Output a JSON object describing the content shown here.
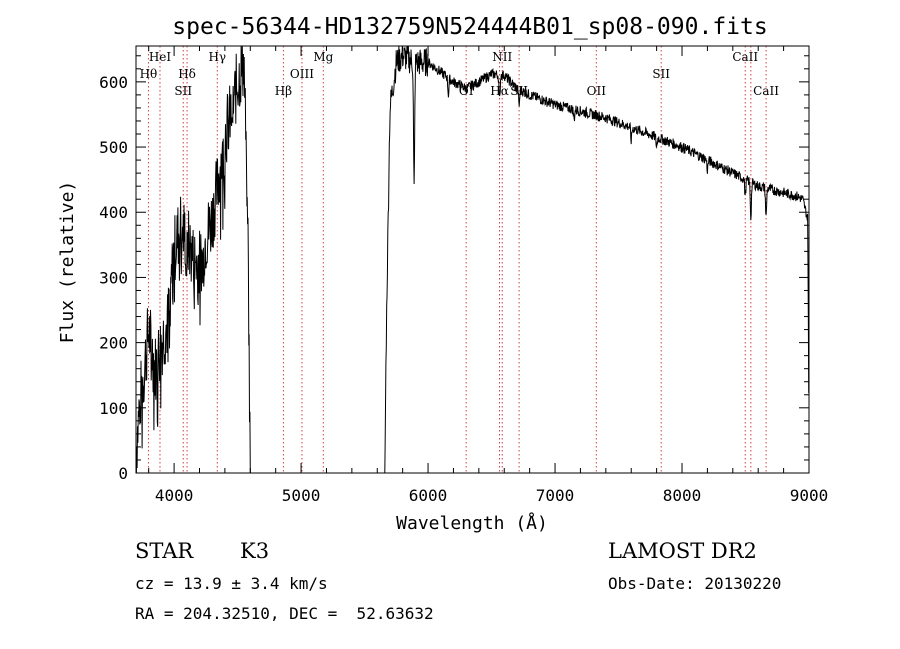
{
  "chart_data": {
    "type": "line",
    "title": "spec-56344-HD132759N524444B01_sp08-090.fits",
    "xlabel": "Wavelength (Å)",
    "ylabel": "Flux (relative)",
    "xlim": [
      3700,
      9000
    ],
    "ylim": [
      0,
      655
    ],
    "x_ticks": [
      4000,
      5000,
      6000,
      7000,
      8000,
      9000
    ],
    "y_ticks": [
      0,
      100,
      200,
      300,
      400,
      500,
      600
    ],
    "grid": false,
    "line_color": "#000000",
    "marker_color": "#d04040",
    "spectrum_anchors": [
      [
        3700,
        30
      ],
      [
        3730,
        110
      ],
      [
        3760,
        150
      ],
      [
        3800,
        220
      ],
      [
        3850,
        160
      ],
      [
        3900,
        200
      ],
      [
        3950,
        230
      ],
      [
        3980,
        300
      ],
      [
        4000,
        340
      ],
      [
        4050,
        380
      ],
      [
        4100,
        360
      ],
      [
        4150,
        330
      ],
      [
        4200,
        320
      ],
      [
        4250,
        360
      ],
      [
        4300,
        390
      ],
      [
        4350,
        450
      ],
      [
        4400,
        520
      ],
      [
        4450,
        550
      ],
      [
        4500,
        600
      ],
      [
        4550,
        630
      ],
      [
        4580,
        400
      ],
      [
        4600,
        0
      ],
      [
        5660,
        0
      ],
      [
        5670,
        200
      ],
      [
        5700,
        560
      ],
      [
        5750,
        630
      ],
      [
        5800,
        640
      ],
      [
        5900,
        630
      ],
      [
        6000,
        630
      ],
      [
        6100,
        615
      ],
      [
        6200,
        600
      ],
      [
        6300,
        590
      ],
      [
        6400,
        600
      ],
      [
        6500,
        612
      ],
      [
        6600,
        610
      ],
      [
        6700,
        590
      ],
      [
        6800,
        580
      ],
      [
        7000,
        565
      ],
      [
        7200,
        555
      ],
      [
        7400,
        545
      ],
      [
        7600,
        530
      ],
      [
        7800,
        515
      ],
      [
        8000,
        500
      ],
      [
        8200,
        480
      ],
      [
        8400,
        460
      ],
      [
        8500,
        450
      ],
      [
        8600,
        440
      ],
      [
        8700,
        435
      ],
      [
        8800,
        430
      ],
      [
        8900,
        425
      ],
      [
        8950,
        420
      ],
      [
        8990,
        390
      ],
      [
        9000,
        50
      ]
    ],
    "absorption_dips": [
      [
        3970,
        45
      ],
      [
        4100,
        40
      ],
      [
        4227,
        30
      ],
      [
        4383,
        25
      ],
      [
        4861,
        20
      ],
      [
        5175,
        30
      ],
      [
        5890,
        200
      ],
      [
        6160,
        25
      ],
      [
        6563,
        40
      ],
      [
        6717,
        25
      ],
      [
        7150,
        15
      ],
      [
        7600,
        20
      ],
      [
        7800,
        15
      ],
      [
        8200,
        15
      ],
      [
        8498,
        25
      ],
      [
        8542,
        55
      ],
      [
        8662,
        45
      ]
    ],
    "line_markers": [
      {
        "label": "HeI",
        "wavelength": 3889,
        "row": 0
      },
      {
        "label": "Hθ",
        "wavelength": 3798,
        "row": 1
      },
      {
        "label": "Hδ",
        "wavelength": 4102,
        "row": 1
      },
      {
        "label": "SII",
        "wavelength": 4072,
        "row": 2
      },
      {
        "label": "Hγ",
        "wavelength": 4340,
        "row": 0
      },
      {
        "label": "Hβ",
        "wavelength": 4861,
        "row": 2
      },
      {
        "label": "OIII",
        "wavelength": 5007,
        "row": 1
      },
      {
        "label": "Mg",
        "wavelength": 5175,
        "row": 0
      },
      {
        "label": "OI",
        "wavelength": 6300,
        "row": 2
      },
      {
        "label": "NII",
        "wavelength": 6584,
        "row": 0
      },
      {
        "label": "Hα",
        "wavelength": 6563,
        "row": 2
      },
      {
        "label": "SII",
        "wavelength": 6717,
        "row": 2
      },
      {
        "label": "OII",
        "wavelength": 7325,
        "row": 2
      },
      {
        "label": "SII",
        "wavelength": 7836,
        "row": 1
      },
      {
        "label": "CaII",
        "wavelength": 8498,
        "row": 0
      },
      {
        "label": "CaII",
        "wavelength": 8662,
        "row": 2
      }
    ],
    "extra_marker_wavelengths": [
      3889,
      4102,
      4340,
      4861,
      5175,
      6300,
      6563,
      6584,
      6717,
      7325,
      7836,
      8498,
      8542,
      8662
    ]
  },
  "info": {
    "object_class": "STAR",
    "subclass": "K3",
    "survey": "LAMOST DR2",
    "cz": "cz = 13.9 ± 3.4 km/s",
    "obs_date": "Obs-Date: 20130220",
    "radec": "RA = 204.32510, DEC =  52.63632"
  }
}
